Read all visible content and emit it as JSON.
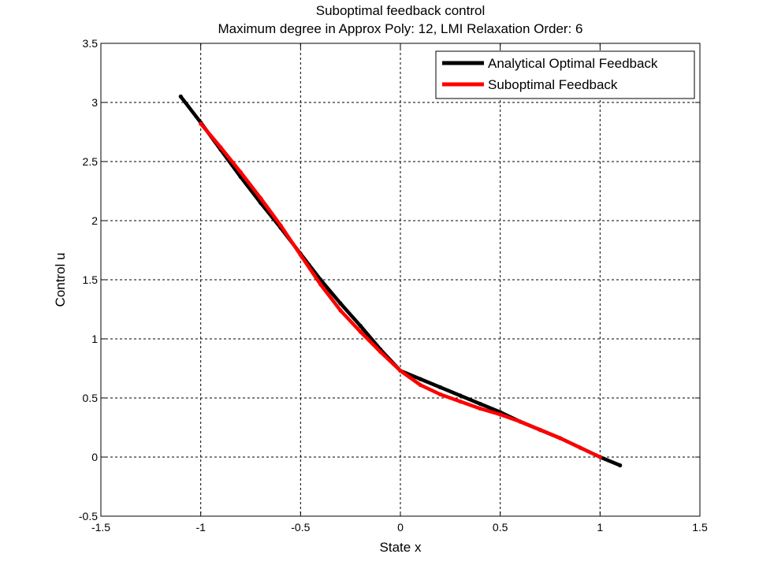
{
  "chart_data": {
    "type": "line",
    "title": "Suboptimal feedback control",
    "subtitle": "Maximum degree in Approx Poly: 12, LMI Relaxation Order: 6",
    "xlabel": "State x",
    "ylabel": "Control u",
    "xlim": [
      -1.5,
      1.5
    ],
    "ylim": [
      -0.5,
      3.5
    ],
    "xticks": [
      -1.5,
      -1,
      -0.5,
      0,
      0.5,
      1,
      1.5
    ],
    "xtick_labels": [
      "-1.5",
      "-1",
      "-0.5",
      "0",
      "0.5",
      "1",
      "1.5"
    ],
    "yticks": [
      -0.5,
      0,
      0.5,
      1,
      1.5,
      2,
      2.5,
      3,
      3.5
    ],
    "ytick_labels": [
      "-0.5",
      "0",
      "0.5",
      "1",
      "1.5",
      "2",
      "2.5",
      "3",
      "3.5"
    ],
    "grid": true,
    "legend": "top-right",
    "series": [
      {
        "name": "Analytical Optimal Feedback",
        "color": "#000000",
        "x": [
          -1.1,
          -1.0,
          -0.9,
          -0.8,
          -0.7,
          -0.6,
          -0.5,
          -0.4,
          -0.3,
          -0.2,
          -0.1,
          0.0,
          0.1,
          0.2,
          0.3,
          0.4,
          0.5,
          0.6,
          0.7,
          0.8,
          0.9,
          1.0,
          1.1
        ],
        "y": [
          3.05,
          2.83,
          2.6,
          2.37,
          2.15,
          1.94,
          1.72,
          1.5,
          1.3,
          1.11,
          0.91,
          0.73,
          0.66,
          0.59,
          0.52,
          0.45,
          0.38,
          0.3,
          0.23,
          0.16,
          0.08,
          0.0,
          -0.07
        ]
      },
      {
        "name": "Suboptimal Feedback",
        "color": "#ff0000",
        "x": [
          -1.0,
          -0.9,
          -0.8,
          -0.7,
          -0.6,
          -0.5,
          -0.4,
          -0.3,
          -0.2,
          -0.1,
          0.0,
          0.1,
          0.2,
          0.3,
          0.4,
          0.5,
          0.6,
          0.7,
          0.8,
          0.9,
          1.0
        ],
        "y": [
          2.82,
          2.62,
          2.41,
          2.19,
          1.96,
          1.71,
          1.46,
          1.24,
          1.06,
          0.89,
          0.73,
          0.61,
          0.53,
          0.47,
          0.41,
          0.36,
          0.3,
          0.23,
          0.16,
          0.08,
          0.0
        ]
      }
    ]
  }
}
